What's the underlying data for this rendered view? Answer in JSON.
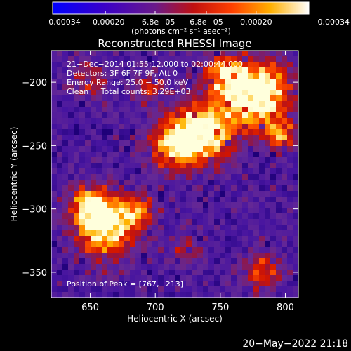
{
  "chart_data": {
    "type": "heatmap",
    "title": "Reconstructed RHESSI Image",
    "xlabel": "Heliocentric X (arcsec)",
    "ylabel": "Heliocentric Y (arcsec)",
    "xlim": [
      620,
      810
    ],
    "ylim": [
      -370,
      -175
    ],
    "xticks": [
      650,
      700,
      750,
      800
    ],
    "yticks": [
      -200,
      -250,
      -300,
      -350
    ],
    "colorbar": {
      "range": [
        -0.00034,
        0.00034
      ],
      "tick_values": [
        -0.00034,
        -0.0002,
        -6.8e-05,
        6.8e-05,
        0.0002,
        0.00034
      ],
      "tick_labels": [
        "−0.00034",
        "−0.00020",
        "−6.8e−05",
        "6.8e−05",
        "0.00020",
        "0.00034"
      ],
      "unit_label": "(photons cm⁻² s⁻¹ asec⁻²)"
    },
    "annotations": [
      "21−Dec−2014 01:55:12.000 to 02:00:44.000",
      "Detectors: 3F 6F 7F 9F, Att 0",
      "Energy Range: 25.0 − 50.0 keV",
      "Clean     Total counts: 3.29E+03",
      "Position of Peak = [767,−213]"
    ],
    "peak": {
      "x": 767,
      "y": -213
    },
    "footer_timestamp": "20−May−2022 21:18"
  }
}
